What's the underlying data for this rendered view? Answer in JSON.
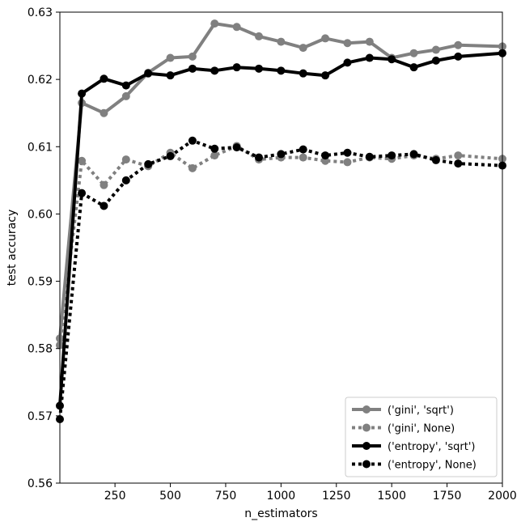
{
  "chart_data": {
    "type": "line",
    "title": "",
    "xlabel": "n_estimators",
    "ylabel": "test accuracy",
    "xlim": [
      1,
      2000
    ],
    "ylim": [
      0.56,
      0.63
    ],
    "x_ticks": [
      250,
      500,
      750,
      1000,
      1250,
      1500,
      1750,
      2000
    ],
    "y_ticks": [
      0.56,
      0.57,
      0.58,
      0.59,
      0.6,
      0.61,
      0.62,
      0.63
    ],
    "y_tick_labels": [
      "0.56",
      "0.57",
      "0.58",
      "0.59",
      "0.60",
      "0.61",
      "0.62",
      "0.63"
    ],
    "grid": false,
    "legend_position": "bottom-right",
    "x": [
      1,
      100,
      200,
      300,
      400,
      500,
      600,
      700,
      800,
      900,
      1000,
      1100,
      1200,
      1300,
      1400,
      1500,
      1600,
      1700,
      1800,
      2000
    ],
    "series": [
      {
        "name": "('gini', 'sqrt')",
        "color": "#808080",
        "style": "solid",
        "values": [
          0.5815,
          0.6165,
          0.615,
          0.6175,
          0.621,
          0.6232,
          0.6234,
          0.6283,
          0.6278,
          0.6264,
          0.6256,
          0.6247,
          0.6261,
          0.6254,
          0.6256,
          0.6232,
          0.6239,
          0.6244,
          0.6251,
          0.6249
        ]
      },
      {
        "name": "('gini', None)",
        "color": "#808080",
        "style": "dotted",
        "values": [
          0.5805,
          0.6079,
          0.6043,
          0.6081,
          0.6071,
          0.6091,
          0.6068,
          0.6087,
          0.6101,
          0.6081,
          0.6084,
          0.6084,
          0.6079,
          0.6077,
          0.6084,
          0.6082,
          0.6087,
          0.6082,
          0.6087,
          0.6082
        ]
      },
      {
        "name": "('entropy', 'sqrt')",
        "color": "#000000",
        "style": "solid",
        "values": [
          0.5715,
          0.6179,
          0.6201,
          0.6191,
          0.6209,
          0.6206,
          0.6216,
          0.6213,
          0.6218,
          0.6216,
          0.6213,
          0.6209,
          0.6206,
          0.6225,
          0.6232,
          0.623,
          0.6218,
          0.6228,
          0.6234,
          0.6239
        ]
      },
      {
        "name": "('entropy', None)",
        "color": "#000000",
        "style": "dotted",
        "values": [
          0.5695,
          0.6031,
          0.6012,
          0.605,
          0.6074,
          0.6086,
          0.6109,
          0.6097,
          0.6099,
          0.6084,
          0.6089,
          0.6096,
          0.6087,
          0.6091,
          0.6085,
          0.6087,
          0.6089,
          0.608,
          0.6075,
          0.6072
        ]
      }
    ]
  }
}
